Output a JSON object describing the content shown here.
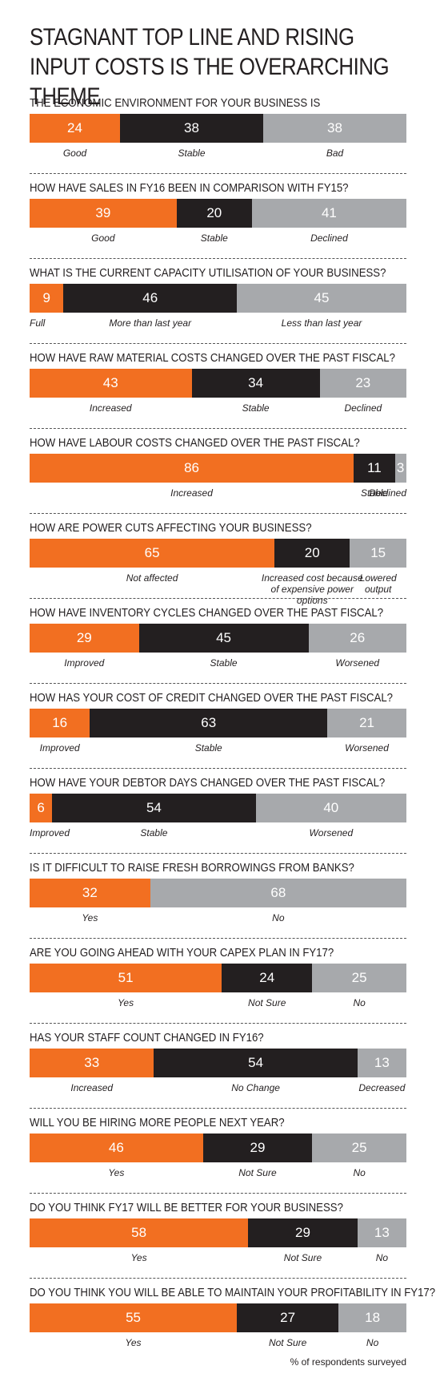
{
  "title": "STAGNANT TOP LINE AND RISING INPUT COSTS IS THE OVERARCHING THEME",
  "footnote": "% of respondents surveyed",
  "chart_data": [
    {
      "type": "bar",
      "title": "THE ECONOMIC ENVIRONMENT FOR YOUR BUSINESS IS",
      "series": [
        {
          "name": "Good",
          "color": "#f26f21",
          "values": [
            24
          ]
        },
        {
          "name": "Stable",
          "color": "#231f20",
          "values": [
            38
          ]
        },
        {
          "name": "Bad",
          "color": "#a7a9ac",
          "values": [
            38
          ]
        }
      ]
    },
    {
      "type": "bar",
      "title": "HOW HAVE SALES IN FY16 BEEN IN COMPARISON WITH FY15?",
      "series": [
        {
          "name": "Good",
          "color": "#f26f21",
          "values": [
            39
          ]
        },
        {
          "name": "Stable",
          "color": "#231f20",
          "values": [
            20
          ]
        },
        {
          "name": "Declined",
          "color": "#a7a9ac",
          "values": [
            41
          ]
        }
      ]
    },
    {
      "type": "bar",
      "title": "WHAT IS THE CURRENT CAPACITY UTILISATION OF YOUR BUSINESS?",
      "series": [
        {
          "name": "Full",
          "color": "#f26f21",
          "values": [
            9
          ]
        },
        {
          "name": "More than last year",
          "color": "#231f20",
          "values": [
            46
          ]
        },
        {
          "name": "Less than last year",
          "color": "#a7a9ac",
          "values": [
            45
          ]
        }
      ]
    },
    {
      "type": "bar",
      "title": "HOW HAVE RAW MATERIAL COSTS CHANGED OVER THE PAST FISCAL?",
      "series": [
        {
          "name": "Increased",
          "color": "#f26f21",
          "values": [
            43
          ]
        },
        {
          "name": "Stable",
          "color": "#231f20",
          "values": [
            34
          ]
        },
        {
          "name": "Declined",
          "color": "#a7a9ac",
          "values": [
            23
          ]
        }
      ]
    },
    {
      "type": "bar",
      "title": "HOW HAVE LABOUR COSTS CHANGED OVER THE PAST FISCAL?",
      "series": [
        {
          "name": "Increased",
          "color": "#f26f21",
          "values": [
            86
          ]
        },
        {
          "name": "Stable",
          "color": "#231f20",
          "values": [
            11
          ]
        },
        {
          "name": "Declined",
          "color": "#a7a9ac",
          "values": [
            3
          ]
        }
      ]
    },
    {
      "type": "bar",
      "title": "HOW ARE POWER CUTS AFFECTING YOUR BUSINESS?",
      "series": [
        {
          "name": "Not affected",
          "color": "#f26f21",
          "values": [
            65
          ]
        },
        {
          "name": "Increased cost because of expensive power options",
          "color": "#231f20",
          "values": [
            20
          ]
        },
        {
          "name": "Lowered output",
          "color": "#a7a9ac",
          "values": [
            15
          ]
        }
      ]
    },
    {
      "type": "bar",
      "title": "HOW HAVE INVENTORY CYCLES CHANGED OVER THE PAST FISCAL?",
      "series": [
        {
          "name": "Improved",
          "color": "#f26f21",
          "values": [
            29
          ]
        },
        {
          "name": "Stable",
          "color": "#231f20",
          "values": [
            45
          ]
        },
        {
          "name": "Worsened",
          "color": "#a7a9ac",
          "values": [
            26
          ]
        }
      ]
    },
    {
      "type": "bar",
      "title": "HOW HAS YOUR COST OF CREDIT CHANGED OVER THE PAST FISCAL?",
      "series": [
        {
          "name": "Improved",
          "color": "#f26f21",
          "values": [
            16
          ]
        },
        {
          "name": "Stable",
          "color": "#231f20",
          "values": [
            63
          ]
        },
        {
          "name": "Worsened",
          "color": "#a7a9ac",
          "values": [
            21
          ]
        }
      ]
    },
    {
      "type": "bar",
      "title": "HOW HAVE YOUR DEBTOR DAYS CHANGED OVER THE PAST FISCAL?",
      "series": [
        {
          "name": "Improved",
          "color": "#f26f21",
          "values": [
            6
          ]
        },
        {
          "name": "Stable",
          "color": "#231f20",
          "values": [
            54
          ]
        },
        {
          "name": "Worsened",
          "color": "#a7a9ac",
          "values": [
            40
          ]
        }
      ]
    },
    {
      "type": "bar",
      "title": "IS IT DIFFICULT TO RAISE FRESH BORROWINGS FROM BANKS?",
      "series": [
        {
          "name": "Yes",
          "color": "#f26f21",
          "values": [
            32
          ]
        },
        {
          "name": "No",
          "color": "#a7a9ac",
          "values": [
            68
          ]
        }
      ]
    },
    {
      "type": "bar",
      "title": "ARE YOU GOING AHEAD WITH YOUR CAPEX PLAN IN FY17?",
      "series": [
        {
          "name": "Yes",
          "color": "#f26f21",
          "values": [
            51
          ]
        },
        {
          "name": "Not Sure",
          "color": "#231f20",
          "values": [
            24
          ]
        },
        {
          "name": "No",
          "color": "#a7a9ac",
          "values": [
            25
          ]
        }
      ]
    },
    {
      "type": "bar",
      "title": "HAS YOUR STAFF COUNT CHANGED IN FY16?",
      "series": [
        {
          "name": "Increased",
          "color": "#f26f21",
          "values": [
            33
          ]
        },
        {
          "name": "No Change",
          "color": "#231f20",
          "values": [
            54
          ]
        },
        {
          "name": "Decreased",
          "color": "#a7a9ac",
          "values": [
            13
          ]
        }
      ]
    },
    {
      "type": "bar",
      "title": "WILL YOU BE HIRING MORE PEOPLE NEXT YEAR?",
      "series": [
        {
          "name": "Yes",
          "color": "#f26f21",
          "values": [
            46
          ]
        },
        {
          "name": "Not Sure",
          "color": "#231f20",
          "values": [
            29
          ]
        },
        {
          "name": "No",
          "color": "#a7a9ac",
          "values": [
            25
          ]
        }
      ]
    },
    {
      "type": "bar",
      "title": "DO YOU THINK FY17 WILL BE BETTER FOR YOUR BUSINESS?",
      "series": [
        {
          "name": "Yes",
          "color": "#f26f21",
          "values": [
            58
          ]
        },
        {
          "name": "Not Sure",
          "color": "#231f20",
          "values": [
            29
          ]
        },
        {
          "name": "No",
          "color": "#a7a9ac",
          "values": [
            13
          ]
        }
      ]
    },
    {
      "type": "bar",
      "title": "DO YOU THINK YOU WILL BE ABLE TO MAINTAIN YOUR PROFITABILITY IN FY17?",
      "series": [
        {
          "name": "Yes",
          "color": "#f26f21",
          "values": [
            55
          ]
        },
        {
          "name": "Not Sure",
          "color": "#231f20",
          "values": [
            27
          ]
        },
        {
          "name": "No",
          "color": "#a7a9ac",
          "values": [
            18
          ]
        }
      ]
    }
  ]
}
